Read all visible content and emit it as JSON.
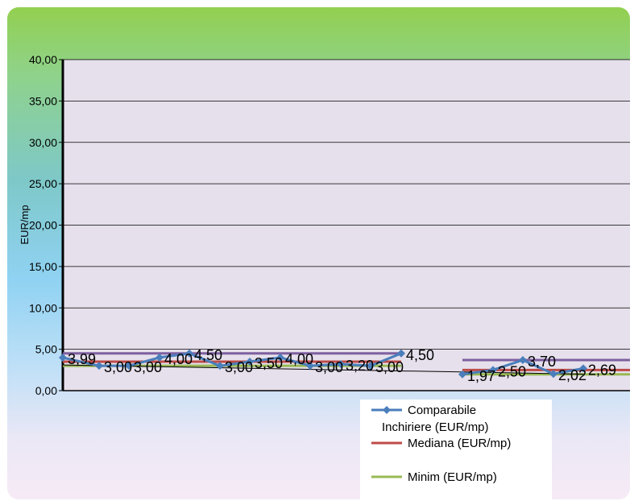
{
  "chart_data": {
    "type": "line",
    "title": "",
    "xlabel": "",
    "ylabel": "EUR/mp",
    "ylim": [
      0,
      40
    ],
    "yticks": [
      "0,00",
      "5,00",
      "10,00",
      "15,00",
      "20,00",
      "25,00",
      "30,00",
      "35,00",
      "40,00"
    ],
    "grid": true,
    "legend_position": "bottom-right",
    "series": [
      {
        "name": "Comparabile Inchiriere (EUR/mp)",
        "color": "#4a7ebb",
        "marker": "diamond",
        "segments": [
          [
            3.99,
            3.0,
            3.0,
            4.0,
            4.5,
            3.0,
            3.5,
            4.0,
            3.0,
            3.2,
            3.0,
            4.5
          ],
          [
            1.97,
            2.5,
            3.7,
            2.02,
            2.69
          ]
        ],
        "labels": [
          [
            "3,99",
            "3,00",
            "3,00",
            "4,00",
            "4,50",
            "3,00",
            "3,50",
            "4,00",
            "3,00",
            "3,20",
            "3,00",
            "4,50"
          ],
          [
            "1,97",
            "2,50",
            "3,70",
            "2,02",
            "2,69"
          ]
        ]
      },
      {
        "name": "Mediana (EUR/mp)",
        "color": "#be4b48",
        "segments": [
          [
            3.5,
            3.5
          ],
          [
            2.5,
            2.5
          ]
        ]
      },
      {
        "name": "Minim (EUR/mp)",
        "color": "#98b954",
        "segments": [
          [
            3.0,
            3.0
          ],
          [
            1.97,
            1.97
          ]
        ]
      },
      {
        "name": "",
        "color": "#7d60a0",
        "segments": [
          [
            4.5,
            4.5
          ],
          [
            3.7,
            3.7
          ]
        ]
      }
    ],
    "trend": {
      "color": "#000000",
      "from": 3.1,
      "to": 2.0
    }
  }
}
